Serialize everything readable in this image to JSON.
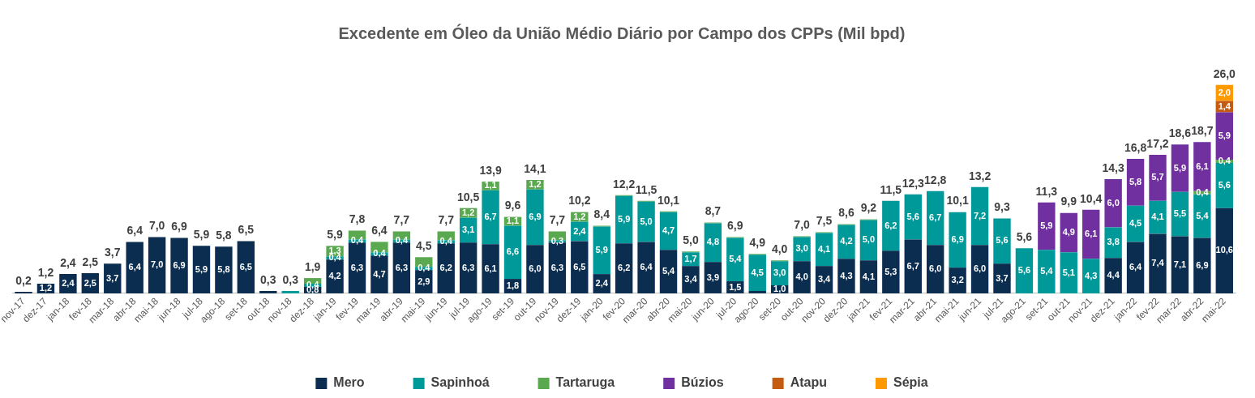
{
  "chart_data": {
    "type": "bar",
    "title": "Excedente em Óleo da União Médio Diário por Campo dos CPPs (Mil bpd)",
    "stacked": true,
    "legend": "bottom",
    "grid": false,
    "tick_labels": "x",
    "categories": [
      "nov-17",
      "dez-17",
      "jan-18",
      "fev-18",
      "mar-18",
      "abr-18",
      "mai-18",
      "jun-18",
      "jul-18",
      "ago-18",
      "set-18",
      "out-18",
      "nov-18",
      "dez-18",
      "jan-19",
      "fev-19",
      "mar-19",
      "abr-19",
      "mai-19",
      "jun-19",
      "jul-19",
      "ago-19",
      "set-19",
      "out-19",
      "nov-19",
      "dez-19",
      "jan-20",
      "fev-20",
      "mar-20",
      "abr-20",
      "mai-20",
      "jun-20",
      "jul-20",
      "ago-20",
      "set-20",
      "out-20",
      "nov-20",
      "dez-20",
      "jan-21",
      "fev-21",
      "mar-21",
      "abr-21",
      "mai-21",
      "jun-21",
      "jul-21",
      "ago-21",
      "set-21",
      "out-21",
      "nov-21",
      "dez-21",
      "jan-22",
      "fev-22",
      "mar-22",
      "abr-22",
      "mai-22"
    ],
    "series": [
      {
        "name": "Mero",
        "color": "#0b2d4f",
        "values": [
          0.2,
          1.2,
          2.4,
          2.5,
          3.7,
          6.4,
          7.0,
          6.9,
          5.9,
          5.8,
          6.5,
          0.3,
          null,
          0.8,
          4.2,
          6.3,
          4.7,
          6.3,
          2.9,
          6.2,
          6.3,
          6.1,
          1.8,
          6.0,
          6.3,
          6.5,
          2.4,
          6.2,
          6.4,
          5.4,
          3.4,
          3.9,
          1.5,
          0.3,
          1.0,
          4.0,
          3.4,
          4.3,
          4.1,
          5.3,
          6.7,
          6.0,
          3.2,
          6.0,
          3.7,
          null,
          null,
          null,
          null,
          4.4,
          6.4,
          7.4,
          7.1,
          6.9,
          10.6
        ],
        "value_labels": [
          null,
          "1,2",
          "2,4",
          "2,5",
          "3,7",
          "6,4",
          "7,0",
          "6,9",
          "5,9",
          "5,8",
          "6,5",
          null,
          null,
          "0,8",
          "4,2",
          "6,3",
          "4,7",
          "6,3",
          "2,9",
          "6,2",
          "6,3",
          "6,1",
          "1,8",
          "6,0",
          "6,3",
          "6,5",
          "2,4",
          "6,2",
          "6,4",
          "5,4",
          "3,4",
          "3,9",
          "1,5",
          null,
          "1,0",
          "4,0",
          "3,4",
          "4,3",
          "4,1",
          "5,3",
          "6,7",
          "6,0",
          "3,2",
          "6,0",
          "3,7",
          null,
          null,
          null,
          null,
          "4,4",
          "6,4",
          "7,4",
          "7,1",
          "6,9",
          "10,6"
        ]
      },
      {
        "name": "Sapinhoá",
        "color": "#00999a",
        "values": [
          null,
          null,
          null,
          null,
          null,
          null,
          null,
          null,
          null,
          null,
          null,
          null,
          0.3,
          0.4,
          0.4,
          0.4,
          0.4,
          0.4,
          0.4,
          0.4,
          3.1,
          6.7,
          6.6,
          6.9,
          0.3,
          2.4,
          5.9,
          5.9,
          5.0,
          4.7,
          1.7,
          4.8,
          5.4,
          4.5,
          3.0,
          3.0,
          4.1,
          4.2,
          5.0,
          6.2,
          5.6,
          6.7,
          6.9,
          7.2,
          5.6,
          5.6,
          5.4,
          5.1,
          4.3,
          3.8,
          4.5,
          4.1,
          5.5,
          5.4,
          5.6
        ],
        "value_labels": [
          null,
          null,
          null,
          null,
          null,
          null,
          null,
          null,
          null,
          null,
          null,
          null,
          null,
          "0,4",
          "0,4",
          "0,4",
          "0,4",
          "0,4",
          "0,4",
          "0,4",
          "3,1",
          "6,7",
          "6,6",
          "6,9",
          "0,3",
          "2,4",
          "5,9",
          "5,9",
          "5,0",
          "4,7",
          "1,7",
          "4,8",
          "5,4",
          "4,5",
          "3,0",
          "3,0",
          "4,1",
          "4,2",
          "5,0",
          "6,2",
          "5,6",
          "6,7",
          "6,9",
          "7,2",
          "5,6",
          "5,6",
          "5,4",
          "5,1",
          "4,3",
          "3,8",
          "4,5",
          "4,1",
          "5,5",
          "5,4",
          "5,6"
        ]
      },
      {
        "name": "Tartaruga",
        "color": "#5aa84f",
        "values": [
          null,
          null,
          null,
          null,
          null,
          null,
          null,
          null,
          null,
          null,
          null,
          null,
          null,
          0.7,
          1.3,
          1.1,
          1.3,
          1.0,
          1.2,
          1.1,
          1.2,
          1.1,
          1.1,
          1.2,
          1.1,
          1.2,
          0.1,
          0.1,
          0.1,
          0.1,
          0.1,
          0.1,
          0.1,
          0.1,
          0.1,
          0.1,
          0.1,
          0.1,
          0.1,
          null,
          null,
          null,
          null,
          null,
          null,
          null,
          null,
          null,
          null,
          null,
          null,
          null,
          null,
          0.4,
          0.4
        ],
        "value_labels": [
          null,
          null,
          null,
          null,
          null,
          null,
          null,
          null,
          null,
          null,
          null,
          null,
          null,
          null,
          "1,3",
          null,
          null,
          null,
          null,
          null,
          "1,2",
          "1,1",
          "1,1",
          "1,2",
          null,
          "1,2",
          null,
          null,
          null,
          null,
          null,
          null,
          null,
          null,
          null,
          null,
          null,
          null,
          null,
          null,
          null,
          null,
          null,
          null,
          null,
          null,
          null,
          null,
          null,
          null,
          null,
          null,
          null,
          "0,4",
          "0,4"
        ]
      },
      {
        "name": "Búzios",
        "color": "#7030a0",
        "values": [
          null,
          null,
          null,
          null,
          null,
          null,
          null,
          null,
          null,
          null,
          null,
          null,
          null,
          null,
          null,
          null,
          null,
          null,
          null,
          null,
          null,
          null,
          null,
          null,
          null,
          null,
          null,
          null,
          null,
          null,
          null,
          null,
          null,
          null,
          null,
          null,
          null,
          null,
          null,
          null,
          null,
          null,
          null,
          null,
          null,
          null,
          5.9,
          4.9,
          6.1,
          6.0,
          5.8,
          5.7,
          5.9,
          6.1,
          5.9
        ],
        "value_labels": [
          null,
          null,
          null,
          null,
          null,
          null,
          null,
          null,
          null,
          null,
          null,
          null,
          null,
          null,
          null,
          null,
          null,
          null,
          null,
          null,
          null,
          null,
          null,
          null,
          null,
          null,
          null,
          null,
          null,
          null,
          null,
          null,
          null,
          null,
          null,
          null,
          null,
          null,
          null,
          null,
          null,
          null,
          null,
          null,
          null,
          null,
          "5,9",
          "4,9",
          "6,1",
          "6,0",
          "5,8",
          "5,7",
          "5,9",
          "6,1",
          "5,9"
        ]
      },
      {
        "name": "Atapu",
        "color": "#c55a11",
        "values": [
          null,
          null,
          null,
          null,
          null,
          null,
          null,
          null,
          null,
          null,
          null,
          null,
          null,
          null,
          null,
          null,
          null,
          null,
          null,
          null,
          null,
          null,
          null,
          null,
          null,
          null,
          null,
          null,
          null,
          null,
          null,
          null,
          null,
          null,
          null,
          null,
          null,
          null,
          null,
          null,
          null,
          null,
          null,
          null,
          null,
          null,
          null,
          null,
          null,
          null,
          null,
          null,
          null,
          null,
          1.4
        ],
        "value_labels": [
          null,
          null,
          null,
          null,
          null,
          null,
          null,
          null,
          null,
          null,
          null,
          null,
          null,
          null,
          null,
          null,
          null,
          null,
          null,
          null,
          null,
          null,
          null,
          null,
          null,
          null,
          null,
          null,
          null,
          null,
          null,
          null,
          null,
          null,
          null,
          null,
          null,
          null,
          null,
          null,
          null,
          null,
          null,
          null,
          null,
          null,
          null,
          null,
          null,
          null,
          null,
          null,
          null,
          null,
          "1,4"
        ]
      },
      {
        "name": "Sépia",
        "color": "#ff9900",
        "values": [
          null,
          null,
          null,
          null,
          null,
          null,
          null,
          null,
          null,
          null,
          null,
          null,
          null,
          null,
          null,
          null,
          null,
          null,
          null,
          null,
          null,
          null,
          null,
          null,
          null,
          null,
          null,
          null,
          null,
          null,
          null,
          null,
          null,
          null,
          null,
          null,
          null,
          null,
          null,
          null,
          null,
          null,
          null,
          null,
          null,
          null,
          null,
          null,
          null,
          null,
          null,
          null,
          null,
          null,
          2.0
        ],
        "value_labels": [
          null,
          null,
          null,
          null,
          null,
          null,
          null,
          null,
          null,
          null,
          null,
          null,
          null,
          null,
          null,
          null,
          null,
          null,
          null,
          null,
          null,
          null,
          null,
          null,
          null,
          null,
          null,
          null,
          null,
          null,
          null,
          null,
          null,
          null,
          null,
          null,
          null,
          null,
          null,
          null,
          null,
          null,
          null,
          null,
          null,
          null,
          null,
          null,
          null,
          null,
          null,
          null,
          null,
          null,
          "2,0"
        ]
      }
    ],
    "totals": [
      "0,2",
      "1,2",
      "2,4",
      "2,5",
      "3,7",
      "6,4",
      "7,0",
      "6,9",
      "5,9",
      "5,8",
      "6,5",
      "0,3",
      "0,3",
      "1,9",
      "5,9",
      "7,8",
      "6,4",
      "7,7",
      "4,5",
      "7,7",
      "10,5",
      "13,9",
      "9,6",
      "14,1",
      "7,7",
      "10,2",
      "8,4",
      "12,2",
      "11,5",
      "10,1",
      "5,0",
      "8,7",
      "6,9",
      "4,9",
      "4,0",
      "7,0",
      "7,5",
      "8,6",
      "9,2",
      "11,5",
      "12,3",
      "12,8",
      "10,1",
      "13,2",
      "9,3",
      "5,6",
      "11,3",
      "9,9",
      "10,4",
      "14,3",
      "16,8",
      "17,2",
      "18,6",
      "18,7",
      "26,0"
    ]
  }
}
